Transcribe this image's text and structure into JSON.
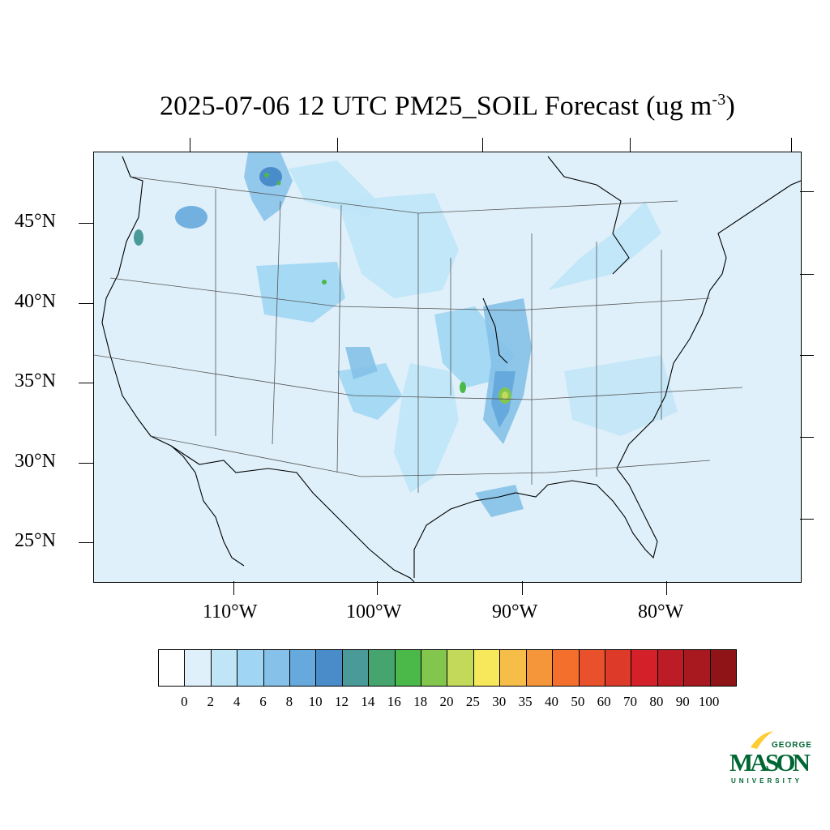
{
  "title": {
    "text": "2025-07-06 12 UTC PM25_SOIL Forecast (ug m",
    "superscript": "-3",
    "suffix": ")"
  },
  "latitude_labels": [
    "45°N",
    "40°N",
    "35°N",
    "30°N",
    "25°N"
  ],
  "longitude_labels": [
    "110°W",
    "100°W",
    "90°W",
    "80°W"
  ],
  "colorbar": {
    "labels": [
      "0",
      "2",
      "4",
      "6",
      "8",
      "10",
      "12",
      "14",
      "16",
      "18",
      "20",
      "25",
      "30",
      "35",
      "40",
      "50",
      "60",
      "70",
      "80",
      "90",
      "100"
    ],
    "colors": [
      "#ffffff",
      "#dff0fa",
      "#bfe5f7",
      "#a0d6f3",
      "#85c1e8",
      "#66a9dc",
      "#4a8bca",
      "#4a9a9a",
      "#46a56e",
      "#4ab94a",
      "#82c64e",
      "#c3d95a",
      "#f7e75b",
      "#f6bd49",
      "#f6963b",
      "#f46f2c",
      "#e8512b",
      "#dd3a2a",
      "#d32029",
      "#bb1c25",
      "#a8191f",
      "#8e1418"
    ]
  },
  "logo": {
    "line1": "GEORGE",
    "line2": "MASON",
    "line3": "UNIVERSITY",
    "colors": {
      "green": "#006633",
      "gold": "#ffcc33"
    }
  }
}
